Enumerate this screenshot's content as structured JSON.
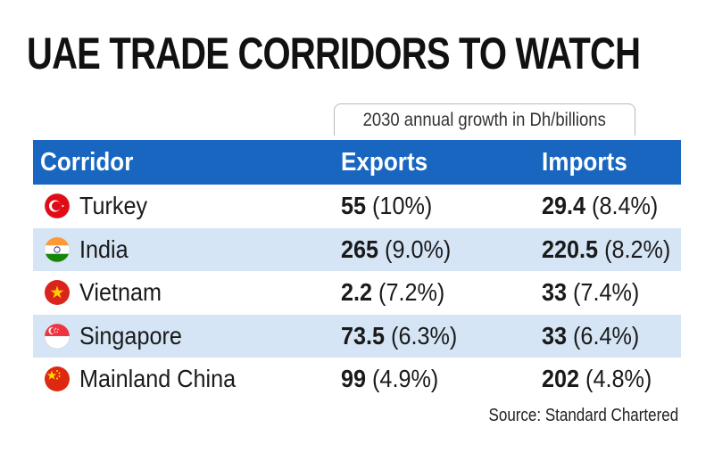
{
  "title": "UAE TRADE CORRIDORS TO WATCH",
  "caption": "2030 annual growth in Dh/billions",
  "headers": {
    "corridor": "Corridor",
    "exports": "Exports",
    "imports": "Imports"
  },
  "rows": [
    {
      "corridor": "Turkey",
      "flag": "turkey-flag-icon",
      "exports_value": "55",
      "exports_pct": "(10%)",
      "imports_value": "29.4",
      "imports_pct": "(8.4%)"
    },
    {
      "corridor": "India",
      "flag": "india-flag-icon",
      "exports_value": "265",
      "exports_pct": "(9.0%)",
      "imports_value": "220.5",
      "imports_pct": "(8.2%)"
    },
    {
      "corridor": "Vietnam",
      "flag": "vietnam-flag-icon",
      "exports_value": "2.2",
      "exports_pct": "(7.2%)",
      "imports_value": "33",
      "imports_pct": "(7.4%)"
    },
    {
      "corridor": "Singapore",
      "flag": "singapore-flag-icon",
      "exports_value": "73.5",
      "exports_pct": "(6.3%)",
      "imports_value": "33",
      "imports_pct": "(6.4%)"
    },
    {
      "corridor": "Mainland China",
      "flag": "china-flag-icon",
      "exports_value": "99",
      "exports_pct": "(4.9%)",
      "imports_value": "202",
      "imports_pct": "(4.8%)"
    }
  ],
  "source": "Source: Standard Chartered",
  "colors": {
    "header_bg": "#1966c1",
    "shaded_row": "#d5e5f5",
    "text": "#1a1a1a"
  }
}
